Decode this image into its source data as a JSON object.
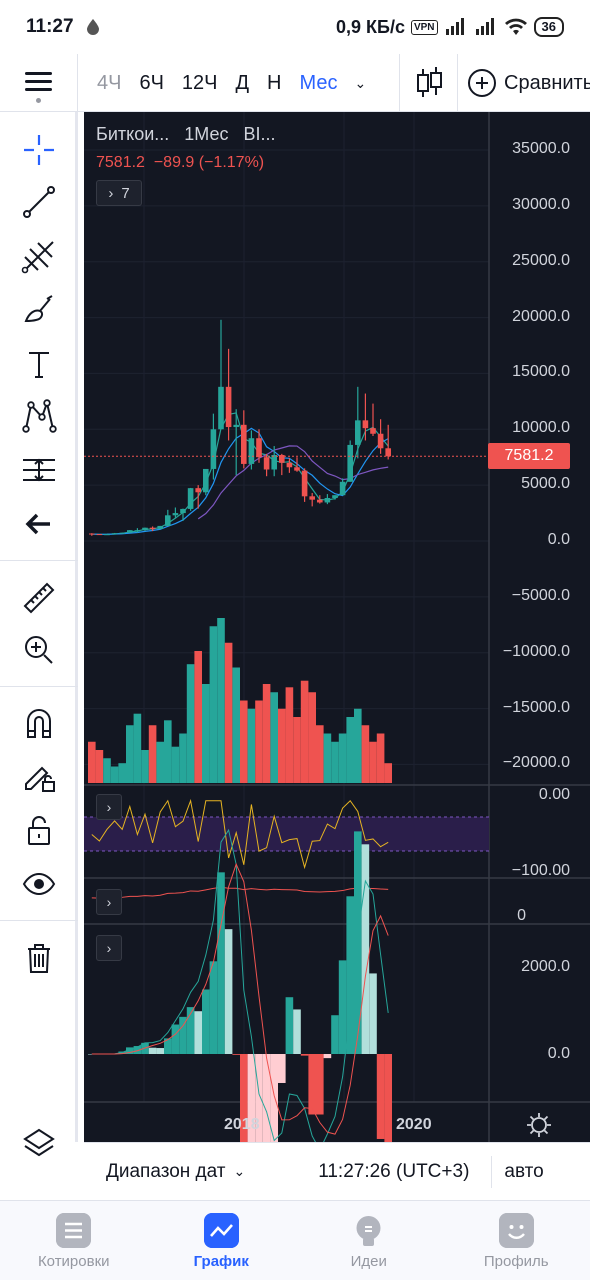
{
  "status_bar": {
    "time": "11:27",
    "speed": "0,9 КБ/с",
    "vpn": "VPN",
    "battery": "36"
  },
  "toolbar": {
    "intervals": [
      {
        "label": "4Ч",
        "state": "dim"
      },
      {
        "label": "6Ч",
        "state": "normal"
      },
      {
        "label": "12Ч",
        "state": "normal"
      },
      {
        "label": "Д",
        "state": "normal"
      },
      {
        "label": "Н",
        "state": "normal"
      },
      {
        "label": "Мес",
        "state": "active"
      }
    ],
    "compare_label": "Сравнить"
  },
  "left_tools": [
    "crosshair-icon",
    "trend-line-icon",
    "pitchfork-icon",
    "brush-icon",
    "text-icon",
    "pattern-icon",
    "measure-range-icon",
    "back-arrow-icon",
    "ruler-icon",
    "zoom-in-icon",
    "magnet-icon",
    "lock-drawings-icon",
    "unlock-icon",
    "eye-icon",
    "trash-icon",
    "layers-icon"
  ],
  "legend": {
    "symbol": "Биткои...",
    "interval": "1Мес",
    "exchange": "BI...",
    "price": "7581.2",
    "change": "−89.9 (−1.17%)",
    "indicators_collapsed": "7"
  },
  "current_price_tag": "7581.2",
  "price_axis": {
    "labels": [
      "35000.0",
      "30000.0",
      "25000.0",
      "20000.0",
      "15000.0",
      "10000.0",
      "5000.0",
      "0.0",
      "−5000.0",
      "−10000.0",
      "−15000.0",
      "−20000.0"
    ],
    "values": [
      35000,
      30000,
      25000,
      20000,
      15000,
      10000,
      5000,
      0,
      -5000,
      -10000,
      -15000,
      -20000
    ]
  },
  "rsi_axis": {
    "labels": [
      "0.00",
      "−100.00"
    ]
  },
  "pane3_axis": {
    "labels": [
      "0"
    ]
  },
  "macd_axis": {
    "labels": [
      "2000.0",
      "0.0"
    ]
  },
  "time_axis": {
    "labels": [
      "2018",
      "2020"
    ]
  },
  "bottom_bar": {
    "date_range": "Диапазон дат",
    "clock": "11:27:26 (UTC+3)",
    "auto": "авто"
  },
  "nav": [
    {
      "label": "Котировки",
      "active": false
    },
    {
      "label": "График",
      "active": true
    },
    {
      "label": "Идеи",
      "active": false
    },
    {
      "label": "Профиль",
      "active": false
    }
  ],
  "colors": {
    "up": "#26a69a",
    "down": "#ef5350",
    "accent": "#2962ff",
    "chart_bg": "#131722"
  },
  "chart_data": {
    "type": "candlestick",
    "interval": "1Mo",
    "x": [
      "2016-07",
      "2016-08",
      "2016-09",
      "2016-10",
      "2016-11",
      "2016-12",
      "2017-01",
      "2017-02",
      "2017-03",
      "2017-04",
      "2017-05",
      "2017-06",
      "2017-07",
      "2017-08",
      "2017-09",
      "2017-10",
      "2017-11",
      "2017-12",
      "2018-01",
      "2018-02",
      "2018-03",
      "2018-04",
      "2018-05",
      "2018-06",
      "2018-07",
      "2018-08",
      "2018-09",
      "2018-10",
      "2018-11",
      "2018-12",
      "2019-01",
      "2019-02",
      "2019-03",
      "2019-04",
      "2019-05",
      "2019-06",
      "2019-07",
      "2019-08",
      "2019-09",
      "2019-10"
    ],
    "ohlc": [
      [
        670,
        700,
        470,
        620
      ],
      [
        620,
        620,
        540,
        575
      ],
      [
        575,
        615,
        560,
        608
      ],
      [
        608,
        720,
        600,
        700
      ],
      [
        700,
        750,
        690,
        740
      ],
      [
        740,
        980,
        730,
        970
      ],
      [
        970,
        1150,
        750,
        970
      ],
      [
        970,
        1200,
        900,
        1190
      ],
      [
        1190,
        1300,
        890,
        1080
      ],
      [
        1080,
        1350,
        1070,
        1350
      ],
      [
        1350,
        2790,
        1360,
        2300
      ],
      [
        2300,
        3000,
        2100,
        2500
      ],
      [
        2500,
        2900,
        1800,
        2870
      ],
      [
        2870,
        4750,
        2700,
        4730
      ],
      [
        4730,
        5000,
        2900,
        4360
      ],
      [
        4360,
        6400,
        4100,
        6450
      ],
      [
        6450,
        11400,
        5500,
        10000
      ],
      [
        10000,
        19800,
        10000,
        13800
      ],
      [
        13800,
        17200,
        9000,
        10200
      ],
      [
        10200,
        11800,
        5900,
        10400
      ],
      [
        10400,
        11700,
        6500,
        6900
      ],
      [
        6900,
        9900,
        6400,
        9200
      ],
      [
        9200,
        10000,
        7000,
        7500
      ],
      [
        7500,
        7800,
        5800,
        6400
      ],
      [
        6400,
        8500,
        5800,
        7700
      ],
      [
        7700,
        7800,
        5900,
        7000
      ],
      [
        7000,
        7400,
        6100,
        6600
      ],
      [
        6600,
        7500,
        6200,
        6300
      ],
      [
        6300,
        6500,
        3500,
        4000
      ],
      [
        4000,
        4300,
        3100,
        3700
      ],
      [
        3700,
        4100,
        3350,
        3450
      ],
      [
        3450,
        4200,
        3300,
        3850
      ],
      [
        3850,
        4100,
        3700,
        4100
      ],
      [
        4100,
        5600,
        4100,
        5300
      ],
      [
        5300,
        9000,
        5300,
        8600
      ],
      [
        8600,
        13800,
        7400,
        10800
      ],
      [
        10800,
        13200,
        9000,
        10100
      ],
      [
        10100,
        12300,
        9400,
        9600
      ],
      [
        9600,
        10900,
        7800,
        8300
      ],
      [
        8300,
        10400,
        7300,
        7581
      ]
    ],
    "volume_relative": [
      0.25,
      0.2,
      0.15,
      0.1,
      0.12,
      0.35,
      0.42,
      0.2,
      0.35,
      0.25,
      0.38,
      0.22,
      0.3,
      0.72,
      0.8,
      0.6,
      0.95,
      1.0,
      0.85,
      0.7,
      0.5,
      0.45,
      0.5,
      0.6,
      0.55,
      0.45,
      0.58,
      0.4,
      0.62,
      0.55,
      0.35,
      0.3,
      0.25,
      0.3,
      0.4,
      0.45,
      0.35,
      0.25,
      0.3,
      0.12
    ],
    "ylim": [
      -22000,
      38000
    ],
    "current_price": 7581.2
  }
}
